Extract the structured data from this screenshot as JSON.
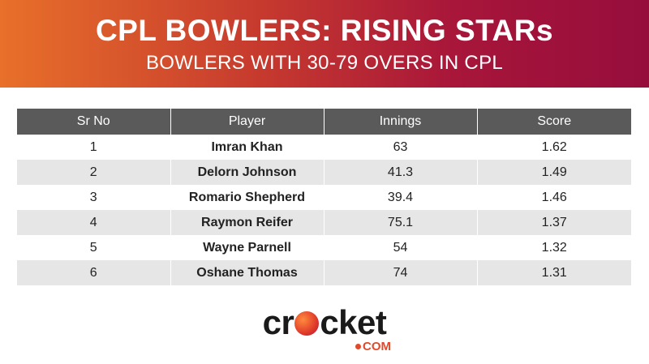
{
  "header": {
    "title": "CPL BOWLERS: RISING STARs",
    "subtitle": "BOWLERS WITH 30-79 OVERS IN CPL"
  },
  "table": {
    "columns": [
      "Sr No",
      "Player",
      "Innings",
      "Score"
    ],
    "rows": [
      {
        "sr": "1",
        "player": "Imran Khan",
        "innings": "63",
        "score": "1.62"
      },
      {
        "sr": "2",
        "player": "Delorn Johnson",
        "innings": "41.3",
        "score": "1.49"
      },
      {
        "sr": "3",
        "player": "Romario Shepherd",
        "innings": "39.4",
        "score": "1.46"
      },
      {
        "sr": "4",
        "player": "Raymon Reifer",
        "innings": "75.1",
        "score": "1.37"
      },
      {
        "sr": "5",
        "player": "Wayne Parnell",
        "innings": "54",
        "score": "1.32"
      },
      {
        "sr": "6",
        "player": "Oshane Thomas",
        "innings": "74",
        "score": "1.31"
      }
    ]
  },
  "logo": {
    "word_start": "cr",
    "word_end": "cket",
    "suffix": "COM",
    "ball_icon": "cricket-ball-icon"
  },
  "colors": {
    "banner_start": "#e8702a",
    "banner_end": "#960d3c",
    "header_row": "#5a5a5a",
    "stripe_row": "#e6e6e6"
  }
}
